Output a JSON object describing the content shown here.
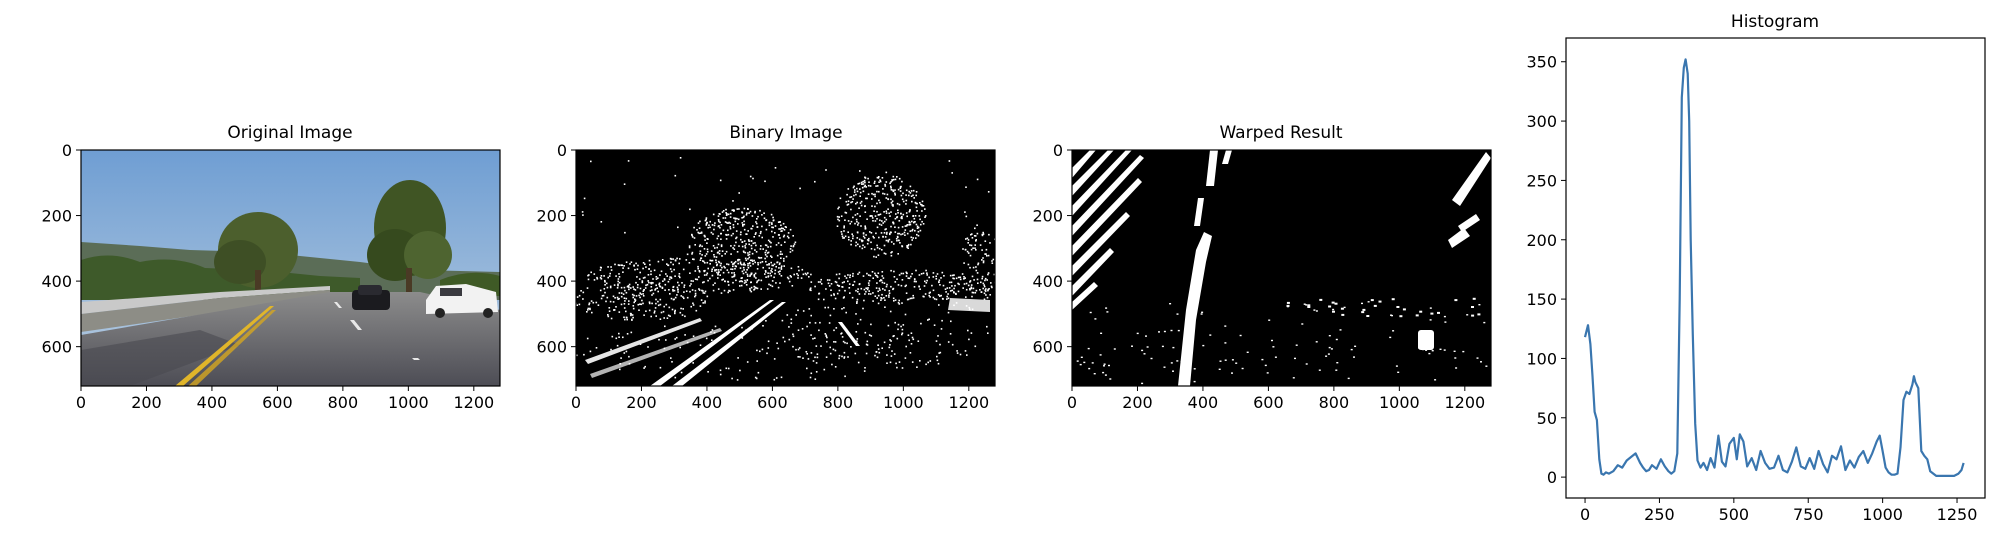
{
  "chart_data": [
    {
      "type": "image",
      "title": "Original Image",
      "xticks": [
        0,
        200,
        400,
        600,
        800,
        1000,
        1200
      ],
      "yticks": [
        0,
        200,
        400,
        600
      ],
      "xlim": [
        0,
        1280
      ],
      "ylim": [
        720,
        0
      ]
    },
    {
      "type": "image",
      "title": "Binary Image",
      "xticks": [
        0,
        200,
        400,
        600,
        800,
        1000,
        1200
      ],
      "yticks": [
        0,
        200,
        400,
        600
      ],
      "xlim": [
        0,
        1280
      ],
      "ylim": [
        720,
        0
      ]
    },
    {
      "type": "image",
      "title": "Warped Result",
      "xticks": [
        0,
        200,
        400,
        600,
        800,
        1000,
        1200
      ],
      "yticks": [
        0,
        200,
        400,
        600
      ],
      "xlim": [
        0,
        1280
      ],
      "ylim": [
        720,
        0
      ]
    },
    {
      "type": "line",
      "title": "Histogram",
      "xticks": [
        0,
        250,
        500,
        750,
        1000,
        1250
      ],
      "yticks": [
        0,
        50,
        100,
        150,
        200,
        250,
        300,
        350
      ],
      "xlim": [
        -64,
        1344
      ],
      "ylim": [
        -17.6,
        370
      ],
      "color": "#3a76af",
      "x": [
        0,
        10,
        18,
        25,
        32,
        40,
        48,
        55,
        62,
        70,
        80,
        95,
        110,
        125,
        140,
        155,
        170,
        185,
        195,
        205,
        215,
        225,
        240,
        255,
        268,
        280,
        290,
        300,
        310,
        318,
        325,
        332,
        338,
        345,
        350,
        355,
        362,
        370,
        378,
        388,
        398,
        410,
        422,
        435,
        448,
        460,
        472,
        485,
        500,
        510,
        520,
        532,
        545,
        560,
        575,
        590,
        605,
        620,
        635,
        650,
        665,
        680,
        695,
        710,
        725,
        740,
        755,
        770,
        785,
        800,
        815,
        830,
        845,
        860,
        875,
        890,
        905,
        920,
        935,
        950,
        965,
        980,
        990,
        1000,
        1010,
        1020,
        1030,
        1040,
        1050,
        1060,
        1070,
        1080,
        1090,
        1100,
        1105,
        1110,
        1120,
        1130,
        1140,
        1150,
        1160,
        1180,
        1200,
        1220,
        1240,
        1255,
        1265,
        1272
      ],
      "y": [
        118,
        128,
        112,
        85,
        55,
        48,
        15,
        3,
        2,
        4,
        3,
        5,
        10,
        8,
        14,
        17,
        20,
        12,
        8,
        5,
        6,
        10,
        7,
        15,
        9,
        5,
        3,
        5,
        20,
        150,
        320,
        345,
        352,
        340,
        300,
        200,
        120,
        45,
        14,
        8,
        12,
        6,
        16,
        8,
        35,
        13,
        9,
        28,
        33,
        15,
        36,
        30,
        9,
        16,
        6,
        22,
        12,
        7,
        8,
        18,
        6,
        4,
        13,
        25,
        9,
        7,
        16,
        7,
        22,
        11,
        4,
        18,
        15,
        26,
        6,
        14,
        8,
        17,
        22,
        12,
        20,
        30,
        35,
        22,
        8,
        4,
        2,
        2,
        3,
        25,
        65,
        72,
        70,
        78,
        85,
        80,
        75,
        22,
        18,
        15,
        5,
        1,
        1,
        1,
        1,
        3,
        6,
        12
      ]
    }
  ]
}
